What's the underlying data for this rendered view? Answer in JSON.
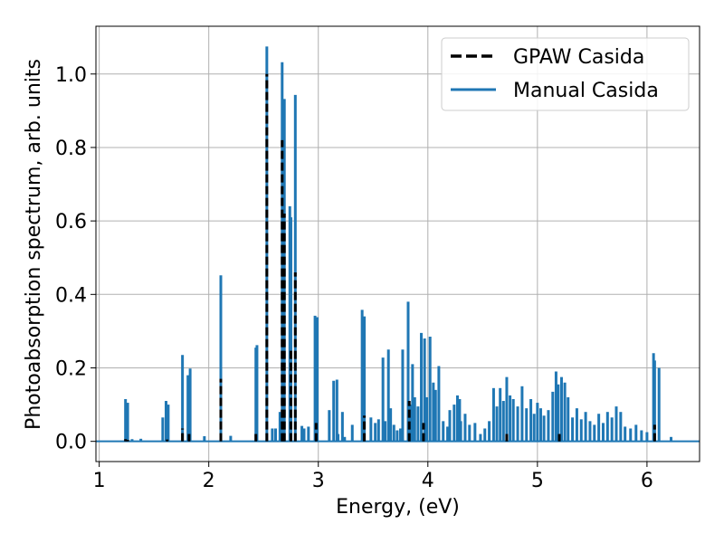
{
  "chart_data": {
    "type": "bar",
    "xlabel": "Energy, (eV)",
    "ylabel": "Photoabsorption spectrum, arb. units",
    "xlim": [
      0.97,
      6.48
    ],
    "ylim": [
      -0.055,
      1.13
    ],
    "xticks": [
      "1",
      "2",
      "3",
      "4",
      "5",
      "6"
    ],
    "yticks": [
      "0.0",
      "0.2",
      "0.4",
      "0.6",
      "0.8",
      "1.0"
    ],
    "grid": true,
    "legend_position": "top-right",
    "colors": {
      "gpaw": "#000000",
      "manual": "#1f77b4",
      "grid": "#b0b0b0"
    },
    "series": [
      {
        "name": "GPAW Casida",
        "style": "dashed",
        "x": [
          1.24,
          1.26,
          1.62,
          1.76,
          1.82,
          2.11,
          2.43,
          2.53,
          2.67,
          2.69,
          2.75,
          2.79,
          2.98,
          3.42,
          3.83,
          3.96,
          4.72,
          5.2,
          6.07
        ],
        "y": [
          0.006,
          0.004,
          0.005,
          0.035,
          0.02,
          0.17,
          0.02,
          1.0,
          0.82,
          0.62,
          0.25,
          0.46,
          0.05,
          0.07,
          0.11,
          0.05,
          0.02,
          0.02,
          0.045
        ]
      },
      {
        "name": "Manual Casida",
        "style": "solid",
        "x": [
          1.24,
          1.26,
          1.3,
          1.38,
          1.58,
          1.61,
          1.63,
          1.76,
          1.81,
          1.83,
          1.96,
          2.11,
          2.2,
          2.43,
          2.44,
          2.53,
          2.58,
          2.61,
          2.65,
          2.67,
          2.69,
          2.74,
          2.75,
          2.79,
          2.85,
          2.87,
          2.91,
          2.97,
          2.99,
          3.1,
          3.14,
          3.17,
          3.18,
          3.22,
          3.24,
          3.31,
          3.4,
          3.42,
          3.48,
          3.52,
          3.55,
          3.59,
          3.61,
          3.64,
          3.66,
          3.69,
          3.72,
          3.75,
          3.77,
          3.82,
          3.84,
          3.86,
          3.88,
          3.91,
          3.94,
          3.97,
          3.99,
          4.02,
          4.05,
          4.07,
          4.1,
          4.14,
          4.18,
          4.2,
          4.24,
          4.27,
          4.29,
          4.3,
          4.34,
          4.38,
          4.43,
          4.48,
          4.52,
          4.56,
          4.6,
          4.63,
          4.66,
          4.69,
          4.72,
          4.75,
          4.78,
          4.82,
          4.86,
          4.9,
          4.94,
          4.97,
          5.0,
          5.03,
          5.06,
          5.1,
          5.14,
          5.17,
          5.19,
          5.22,
          5.25,
          5.28,
          5.32,
          5.36,
          5.4,
          5.44,
          5.48,
          5.52,
          5.56,
          5.6,
          5.64,
          5.68,
          5.72,
          5.76,
          5.8,
          5.85,
          5.9,
          5.95,
          6.0,
          6.06,
          6.07,
          6.11,
          6.22
        ],
        "y": [
          0.115,
          0.105,
          0.006,
          0.007,
          0.065,
          0.11,
          0.1,
          0.235,
          0.18,
          0.198,
          0.014,
          0.452,
          0.015,
          0.255,
          0.262,
          1.075,
          0.035,
          0.035,
          0.08,
          1.032,
          0.932,
          0.64,
          0.61,
          0.943,
          0.042,
          0.035,
          0.04,
          0.342,
          0.338,
          0.085,
          0.165,
          0.168,
          0.02,
          0.08,
          0.012,
          0.045,
          0.358,
          0.34,
          0.065,
          0.05,
          0.06,
          0.228,
          0.055,
          0.25,
          0.09,
          0.045,
          0.03,
          0.035,
          0.25,
          0.38,
          0.1,
          0.21,
          0.12,
          0.095,
          0.295,
          0.28,
          0.12,
          0.285,
          0.16,
          0.14,
          0.205,
          0.055,
          0.04,
          0.085,
          0.1,
          0.125,
          0.115,
          0.055,
          0.075,
          0.045,
          0.05,
          0.02,
          0.035,
          0.055,
          0.145,
          0.095,
          0.145,
          0.11,
          0.175,
          0.125,
          0.115,
          0.095,
          0.15,
          0.09,
          0.115,
          0.075,
          0.105,
          0.09,
          0.07,
          0.085,
          0.135,
          0.19,
          0.155,
          0.175,
          0.16,
          0.12,
          0.065,
          0.09,
          0.06,
          0.08,
          0.055,
          0.045,
          0.075,
          0.05,
          0.08,
          0.065,
          0.095,
          0.08,
          0.04,
          0.035,
          0.045,
          0.03,
          0.025,
          0.24,
          0.22,
          0.2,
          0.012
        ]
      }
    ]
  }
}
